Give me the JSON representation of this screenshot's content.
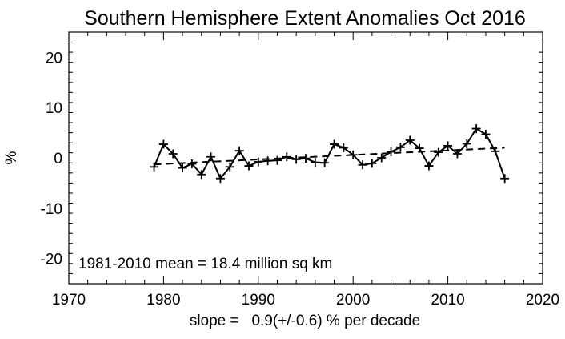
{
  "chart_data": {
    "type": "line",
    "title": "Southern Hemisphere Extent Anomalies Oct 2016",
    "xlabel": "slope =   0.9(+/-0.6) % per decade",
    "ylabel": "%",
    "xlim": [
      1970,
      2020
    ],
    "ylim": [
      -25,
      25
    ],
    "xticks": [
      1970,
      1980,
      1990,
      2000,
      2010,
      2020
    ],
    "yticks": [
      -20,
      -10,
      0,
      10,
      20
    ],
    "annotation": "1981-2010 mean =  18.4 million sq km",
    "grid": false,
    "series": [
      {
        "style": "solid-with-plus-markers",
        "color": "#000000",
        "x": [
          1979,
          1980,
          1981,
          1982,
          1983,
          1984,
          1985,
          1986,
          1987,
          1988,
          1989,
          1990,
          1991,
          1992,
          1993,
          1994,
          1995,
          1996,
          1997,
          1998,
          1999,
          2000,
          2001,
          2002,
          2003,
          2004,
          2005,
          2006,
          2007,
          2008,
          2009,
          2010,
          2011,
          2012,
          2013,
          2014,
          2015,
          2016
        ],
        "y": [
          -1.8,
          2.7,
          0.8,
          -2.0,
          -1.2,
          -3.3,
          0.2,
          -4.1,
          -1.8,
          1.4,
          -1.6,
          -0.8,
          -0.6,
          -0.5,
          0.2,
          -0.3,
          -0.1,
          -0.9,
          -1.0,
          2.7,
          2.0,
          0.6,
          -1.4,
          -1.1,
          0.0,
          1.2,
          2.1,
          3.5,
          1.9,
          -1.6,
          1.1,
          2.4,
          0.8,
          2.8,
          5.8,
          4.7,
          1.3,
          -4.1
        ]
      },
      {
        "style": "dashed-trend",
        "color": "#000000",
        "x": [
          1979,
          2016
        ],
        "y": [
          -1.3,
          2.0
        ]
      }
    ]
  }
}
